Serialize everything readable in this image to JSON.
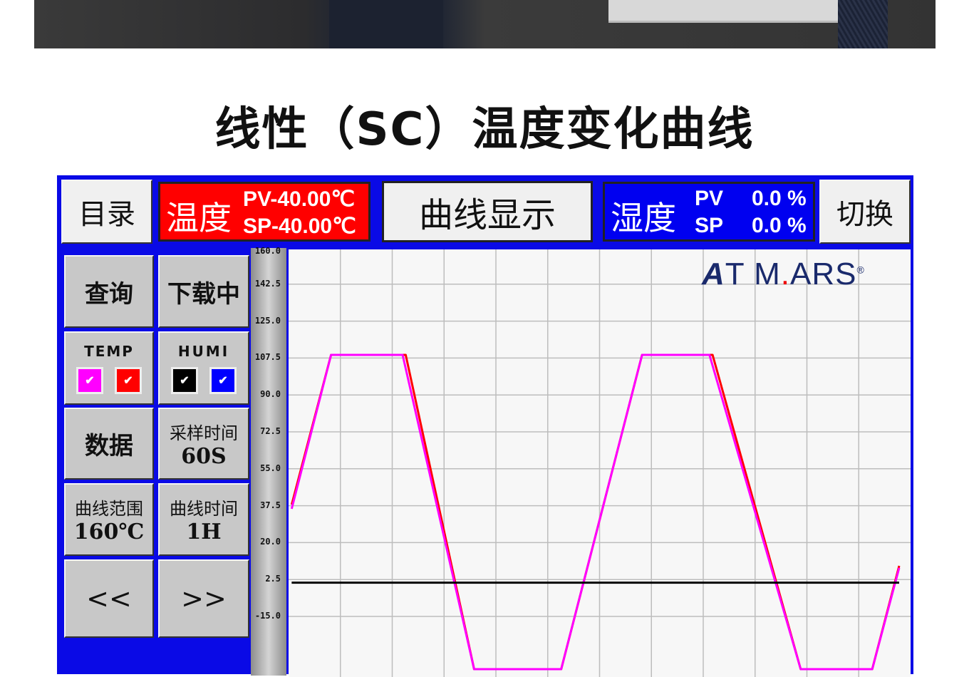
{
  "title": "线性（SC）温度变化曲线",
  "header": {
    "menu_label": "目录",
    "temp_label": "温度",
    "temp_pv": "PV-40.00℃",
    "temp_sp": "SP-40.00℃",
    "curve_label": "曲线显示",
    "humi_label": "湿度",
    "humi_pv_label": "PV",
    "humi_pv": "0.0 %",
    "humi_sp_label": "SP",
    "humi_sp": "0.0 %",
    "switch_label": "切换"
  },
  "side": {
    "query": "查询",
    "download": "下载中",
    "temp": "TEMP",
    "humi": "HUMI",
    "check": "✔",
    "data": "数据",
    "sample_label": "采样时间",
    "sample_value": "60S",
    "range_label": "曲线范围",
    "range_value": "160℃",
    "time_label": "曲线时间",
    "time_value": "1H",
    "prev": "<<",
    "next": ">>"
  },
  "colors": {
    "temp_pv": "#ff00ff",
    "temp_sp": "#ff0000",
    "humi_pv": "#000000",
    "humi_sp": "#0000ff",
    "frame": "#0a0ae6"
  },
  "logo": "ATMARS",
  "chart_data": {
    "type": "line",
    "ylim": [
      -40,
      160
    ],
    "xlim": [
      0,
      60
    ],
    "yticks": [
      "160.0",
      "142.5",
      "125.0",
      "107.5",
      "90.0",
      "72.5",
      "55.0",
      "37.5",
      "20.0",
      "2.5",
      "-15.0"
    ],
    "grid": true,
    "series": [
      {
        "color": "#ff0000",
        "x": [
          0.3,
          4.1,
          11.3,
          17.9,
          26.3,
          34.1,
          40.9,
          49.4,
          56.3,
          58.9
        ],
        "y": [
          38,
          109,
          109,
          -40,
          -40,
          109,
          109,
          -40,
          -40,
          9
        ]
      },
      {
        "color": "#ff00ff",
        "x": [
          0.3,
          4.1,
          11.0,
          17.9,
          26.3,
          34.1,
          40.6,
          49.4,
          56.3,
          58.9
        ],
        "y": [
          36,
          109,
          109,
          -40,
          -40,
          109,
          109,
          -40,
          -40,
          8
        ]
      },
      {
        "color": "#000000",
        "x": [
          0.3,
          58.9
        ],
        "y": [
          1,
          1
        ]
      }
    ]
  }
}
